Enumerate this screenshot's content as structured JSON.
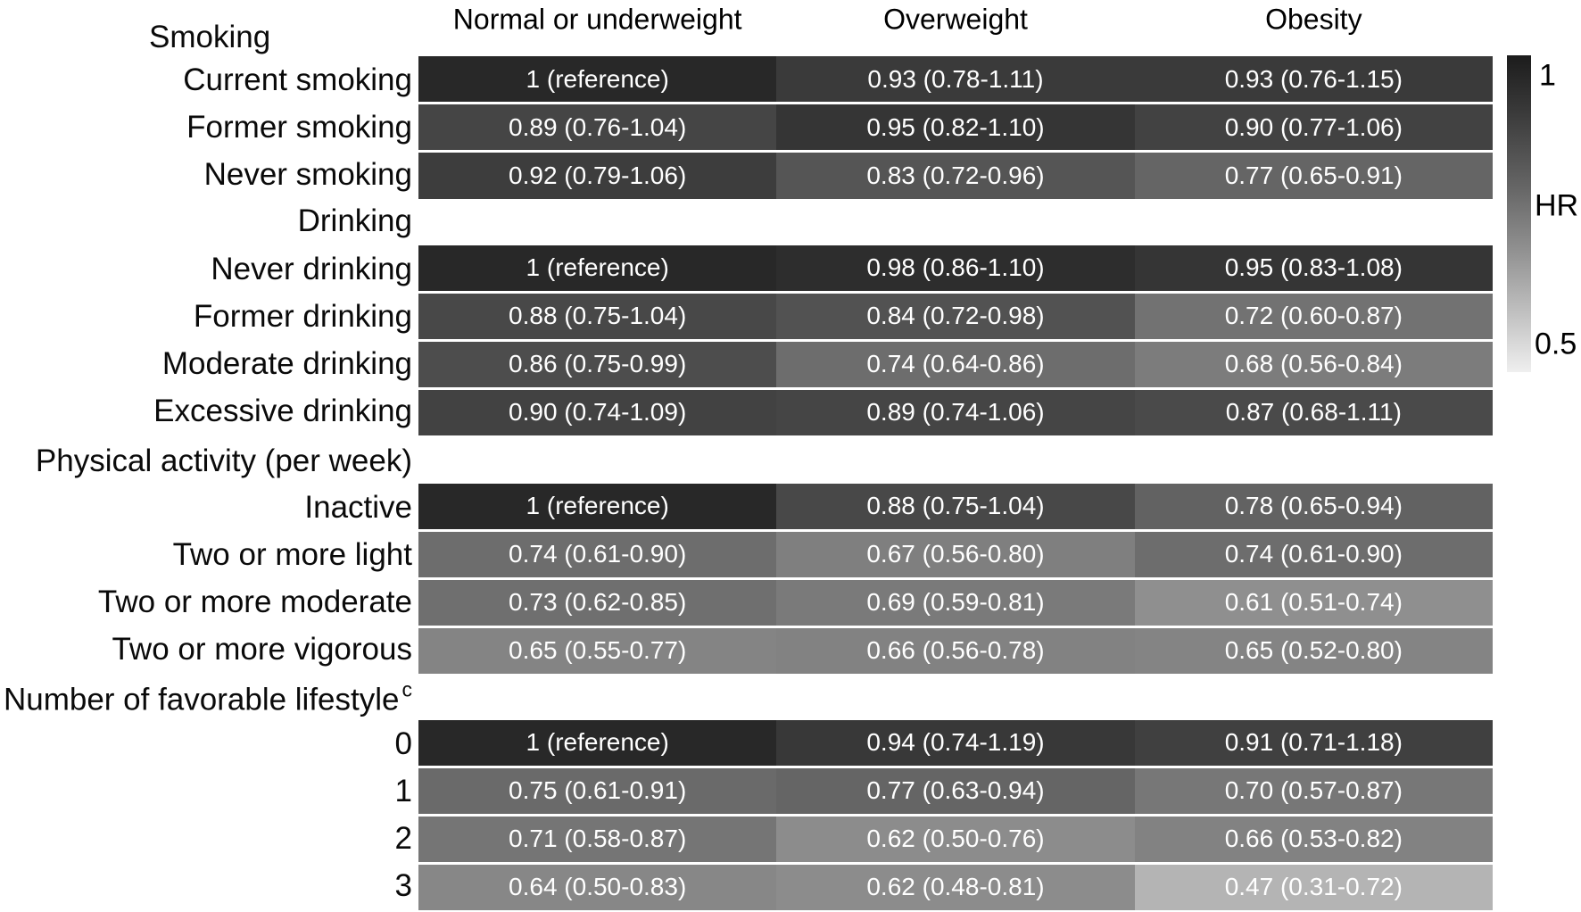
{
  "chart_data": {
    "type": "heatmap",
    "title": "",
    "value_label": "HR",
    "columns": [
      "Normal or underweight",
      "Overweight",
      "Obesity"
    ],
    "groups": [
      {
        "label": "Smoking",
        "sup": "",
        "rows": [
          {
            "label": "Current smoking",
            "cells": [
              {
                "text": "1 (reference)",
                "hr": 1.0
              },
              {
                "text": "0.93 (0.78-1.11)",
                "hr": 0.93
              },
              {
                "text": "0.93 (0.76-1.15)",
                "hr": 0.93
              }
            ]
          },
          {
            "label": "Former smoking",
            "cells": [
              {
                "text": "0.89 (0.76-1.04)",
                "hr": 0.89
              },
              {
                "text": "0.95 (0.82-1.10)",
                "hr": 0.95
              },
              {
                "text": "0.90 (0.77-1.06)",
                "hr": 0.9
              }
            ]
          },
          {
            "label": "Never smoking",
            "cells": [
              {
                "text": "0.92 (0.79-1.06)",
                "hr": 0.92
              },
              {
                "text": "0.83 (0.72-0.96)",
                "hr": 0.83
              },
              {
                "text": "0.77 (0.65-0.91)",
                "hr": 0.77
              }
            ]
          }
        ]
      },
      {
        "label": "Drinking",
        "sup": "",
        "rows": [
          {
            "label": "Never drinking",
            "cells": [
              {
                "text": "1 (reference)",
                "hr": 1.0
              },
              {
                "text": "0.98 (0.86-1.10)",
                "hr": 0.98
              },
              {
                "text": "0.95 (0.83-1.08)",
                "hr": 0.95
              }
            ]
          },
          {
            "label": "Former drinking",
            "cells": [
              {
                "text": "0.88 (0.75-1.04)",
                "hr": 0.88
              },
              {
                "text": "0.84 (0.72-0.98)",
                "hr": 0.84
              },
              {
                "text": "0.72 (0.60-0.87)",
                "hr": 0.72
              }
            ]
          },
          {
            "label": "Moderate drinking",
            "cells": [
              {
                "text": "0.86 (0.75-0.99)",
                "hr": 0.86
              },
              {
                "text": "0.74 (0.64-0.86)",
                "hr": 0.74
              },
              {
                "text": "0.68 (0.56-0.84)",
                "hr": 0.68
              }
            ]
          },
          {
            "label": "Excessive drinking",
            "cells": [
              {
                "text": "0.90 (0.74-1.09)",
                "hr": 0.9
              },
              {
                "text": "0.89 (0.74-1.06)",
                "hr": 0.89
              },
              {
                "text": "0.87 (0.68-1.11)",
                "hr": 0.87
              }
            ]
          }
        ]
      },
      {
        "label": "Physical activity (per week)",
        "sup": "",
        "rows": [
          {
            "label": "Inactive",
            "cells": [
              {
                "text": "1 (reference)",
                "hr": 1.0
              },
              {
                "text": "0.88 (0.75-1.04)",
                "hr": 0.88
              },
              {
                "text": "0.78 (0.65-0.94)",
                "hr": 0.78
              }
            ]
          },
          {
            "label": "Two or more light",
            "cells": [
              {
                "text": "0.74 (0.61-0.90)",
                "hr": 0.74
              },
              {
                "text": "0.67 (0.56-0.80)",
                "hr": 0.67
              },
              {
                "text": "0.74 (0.61-0.90)",
                "hr": 0.74
              }
            ]
          },
          {
            "label": "Two or more moderate",
            "cells": [
              {
                "text": "0.73 (0.62-0.85)",
                "hr": 0.73
              },
              {
                "text": "0.69 (0.59-0.81)",
                "hr": 0.69
              },
              {
                "text": "0.61 (0.51-0.74)",
                "hr": 0.61
              }
            ]
          },
          {
            "label": "Two or more vigorous",
            "cells": [
              {
                "text": "0.65 (0.55-0.77)",
                "hr": 0.65
              },
              {
                "text": "0.66 (0.56-0.78)",
                "hr": 0.66
              },
              {
                "text": "0.65 (0.52-0.80)",
                "hr": 0.65
              }
            ]
          }
        ]
      },
      {
        "label": "Number of favorable lifestyle",
        "sup": "c",
        "rows": [
          {
            "label": "0",
            "cells": [
              {
                "text": "1 (reference)",
                "hr": 1.0
              },
              {
                "text": "0.94 (0.74-1.19)",
                "hr": 0.94
              },
              {
                "text": "0.91 (0.71-1.18)",
                "hr": 0.91
              }
            ]
          },
          {
            "label": "1",
            "cells": [
              {
                "text": "0.75 (0.61-0.91)",
                "hr": 0.75
              },
              {
                "text": "0.77 (0.63-0.94)",
                "hr": 0.77
              },
              {
                "text": "0.70 (0.57-0.87)",
                "hr": 0.7
              }
            ]
          },
          {
            "label": "2",
            "cells": [
              {
                "text": "0.71 (0.58-0.87)",
                "hr": 0.71
              },
              {
                "text": "0.62 (0.50-0.76)",
                "hr": 0.62
              },
              {
                "text": "0.66 (0.53-0.82)",
                "hr": 0.66
              }
            ]
          },
          {
            "label": "3",
            "cells": [
              {
                "text": "0.64 (0.50-0.83)",
                "hr": 0.64
              },
              {
                "text": "0.62 (0.48-0.81)",
                "hr": 0.62
              },
              {
                "text": "0.47 (0.31-0.72)",
                "hr": 0.47
              }
            ]
          }
        ]
      }
    ],
    "colorbar": {
      "title": "HR",
      "top_tick": "1",
      "bottom_tick": "0.5",
      "hr_max": 1.0,
      "hr_min": 0.5
    },
    "legend_position": "right",
    "colors": {
      "cell_hr_1": "#282828",
      "cell_hr_047": "#b4b4b4",
      "cell_text": "#ffffff",
      "label_text": "#000000"
    }
  }
}
